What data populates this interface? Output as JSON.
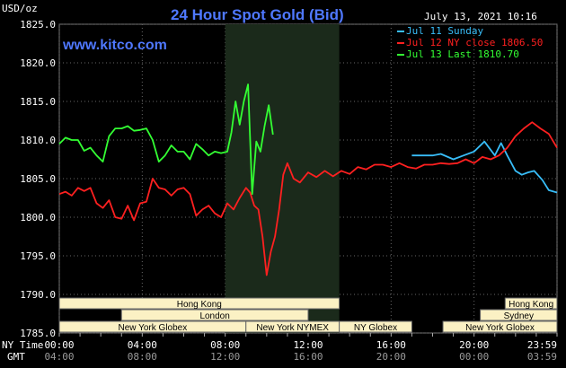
{
  "header": {
    "unit": "USD/oz",
    "title": "24 Hour Spot Gold (Bid)",
    "date": "July 13, 2021 10:16",
    "site": "www.kitco.com"
  },
  "legend": [
    {
      "label": "Jul 11 Sunday",
      "color": "#38bdf8"
    },
    {
      "label": "Jul 12 NY close 1806.50",
      "color": "#ff2020"
    },
    {
      "label": "Jul 13 Last 1810.70",
      "color": "#33ff33"
    }
  ],
  "axis": {
    "row1_label": "NY Time",
    "row2_label": "GMT",
    "ny_ticks": [
      "00:00",
      "04:00",
      "08:00",
      "12:00",
      "16:00",
      "20:00",
      "23:59"
    ],
    "gmt_ticks": [
      "04:00",
      "08:00",
      "12:00",
      "16:00",
      "20:00",
      "00:00",
      "03:59"
    ]
  },
  "sessions": [
    {
      "label": "Hong Kong",
      "row": 0,
      "start": 0,
      "end": 13.5
    },
    {
      "label": "Hong Kong",
      "row": 0,
      "start": 21.5,
      "end": 24
    },
    {
      "label": "London",
      "row": 1,
      "start": 3.0,
      "end": 12.0
    },
    {
      "label": "Sydney",
      "row": 1,
      "start": 20.3,
      "end": 24
    },
    {
      "label": "New York Globex",
      "row": 2,
      "start": 0,
      "end": 9.0
    },
    {
      "label": "New York NYMEX",
      "row": 2,
      "start": 9.0,
      "end": 13.5
    },
    {
      "label": "NY Globex",
      "row": 2,
      "start": 13.5,
      "end": 17.0
    },
    {
      "label": "New York Globex",
      "row": 2,
      "start": 18.5,
      "end": 24
    }
  ],
  "chart_data": {
    "type": "line",
    "title": "24 Hour Spot Gold (Bid)",
    "ylabel": "USD/oz",
    "xlabel": "",
    "ylim": [
      1785,
      1825
    ],
    "xlim": [
      0,
      24
    ],
    "yticks": [
      1785,
      1790,
      1795,
      1800,
      1805,
      1810,
      1815,
      1820,
      1825
    ],
    "highlight_hours": [
      8,
      13.5
    ],
    "grid": true,
    "series": [
      {
        "name": "Jul 11 Sunday",
        "color": "#38bdf8",
        "x": [
          17.0,
          18.0,
          18.4,
          19.0,
          19.5,
          20.0,
          20.5,
          21.0,
          21.3,
          21.6,
          22.0,
          22.3,
          22.6,
          22.9,
          23.3,
          23.6,
          24.0
        ],
        "y": [
          1808.0,
          1808.0,
          1808.2,
          1807.5,
          1808.0,
          1808.5,
          1809.8,
          1808.0,
          1809.6,
          1808.0,
          1806.0,
          1805.5,
          1805.8,
          1806.0,
          1804.8,
          1803.5,
          1803.2
        ]
      },
      {
        "name": "Jul 12 NY close 1806.50",
        "color": "#ff2020",
        "x": [
          0,
          0.3,
          0.6,
          0.9,
          1.2,
          1.5,
          1.8,
          2.1,
          2.4,
          2.7,
          3.0,
          3.3,
          3.6,
          3.9,
          4.2,
          4.5,
          4.8,
          5.1,
          5.4,
          5.7,
          6.0,
          6.3,
          6.6,
          6.9,
          7.2,
          7.5,
          7.8,
          8.1,
          8.4,
          8.7,
          9.0,
          9.2,
          9.4,
          9.6,
          9.8,
          10.0,
          10.2,
          10.4,
          10.6,
          10.8,
          11.0,
          11.3,
          11.6,
          12.0,
          12.4,
          12.8,
          13.2,
          13.6,
          14.0,
          14.4,
          14.8,
          15.2,
          15.6,
          16.0,
          16.4,
          16.8,
          17.2,
          17.6,
          18.0,
          18.4,
          18.8,
          19.2,
          19.6,
          20.0,
          20.4,
          20.8,
          21.2,
          21.6,
          22.0,
          22.4,
          22.8,
          23.2,
          23.6,
          24.0
        ],
        "y": [
          1803.0,
          1803.3,
          1802.8,
          1803.8,
          1803.4,
          1803.8,
          1801.8,
          1801.2,
          1802.2,
          1800.0,
          1799.8,
          1801.5,
          1799.6,
          1801.8,
          1802.0,
          1805.0,
          1803.8,
          1803.6,
          1802.8,
          1803.6,
          1803.8,
          1803.0,
          1800.2,
          1801.0,
          1801.5,
          1800.5,
          1800.0,
          1801.8,
          1801.0,
          1802.5,
          1803.8,
          1803.2,
          1801.5,
          1801.0,
          1797.5,
          1792.5,
          1795.5,
          1797.5,
          1801.0,
          1805.5,
          1807.0,
          1805.0,
          1804.5,
          1805.8,
          1805.2,
          1806.0,
          1805.3,
          1806.0,
          1805.6,
          1806.5,
          1806.2,
          1806.8,
          1806.8,
          1806.5,
          1807.0,
          1806.5,
          1806.3,
          1806.8,
          1806.8,
          1807.0,
          1806.9,
          1807.0,
          1807.5,
          1807.0,
          1807.8,
          1807.5,
          1808.0,
          1809.0,
          1810.5,
          1811.5,
          1812.3,
          1811.5,
          1810.8,
          1809.0
        ]
      },
      {
        "name": "Jul 13 Last 1810.70",
        "color": "#33ff33",
        "x": [
          0,
          0.3,
          0.6,
          0.9,
          1.2,
          1.5,
          1.8,
          2.1,
          2.4,
          2.7,
          3.0,
          3.3,
          3.6,
          3.9,
          4.2,
          4.5,
          4.8,
          5.1,
          5.4,
          5.7,
          6.0,
          6.3,
          6.6,
          6.9,
          7.2,
          7.5,
          7.8,
          8.1,
          8.3,
          8.5,
          8.7,
          8.9,
          9.1,
          9.3,
          9.5,
          9.7,
          9.9,
          10.1,
          10.3
        ],
        "y": [
          1809.5,
          1810.3,
          1810.0,
          1810.0,
          1808.6,
          1809.0,
          1808.0,
          1807.2,
          1810.5,
          1811.5,
          1811.5,
          1811.8,
          1811.2,
          1811.3,
          1811.5,
          1810.0,
          1807.2,
          1808.0,
          1809.3,
          1808.5,
          1808.5,
          1807.5,
          1809.5,
          1808.8,
          1808.0,
          1808.5,
          1808.3,
          1808.5,
          1811.0,
          1815.0,
          1812.0,
          1815.0,
          1817.2,
          1803.0,
          1809.8,
          1808.5,
          1811.8,
          1814.5,
          1810.7
        ]
      }
    ]
  }
}
